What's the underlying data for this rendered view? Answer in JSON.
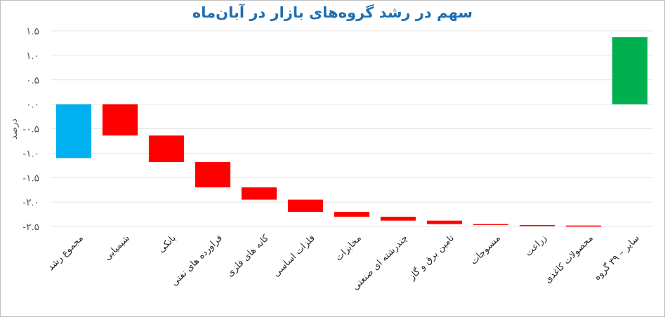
{
  "chart_data": {
    "type": "bar",
    "subtype": "waterfall",
    "title": "سهم در رشد گروه‌های بازار در آبان‌ماه",
    "ylabel": "درصد",
    "xlabel": "",
    "ylim": [
      -2.5,
      1.5
    ],
    "yticks": [
      1.5,
      1.0,
      0.5,
      0.0,
      -0.5,
      -1.0,
      -1.5,
      -2.0,
      -2.5
    ],
    "ytick_labels": [
      "۱.۵",
      "۱.۰",
      "۰.۵",
      "۰.۰",
      "-۰.۵",
      "-۱.۰",
      "-۱.۵",
      "-۲.۰",
      "-۲.۵"
    ],
    "grid": true,
    "legend": "none",
    "categories": [
      "مجموع رشد",
      "شیمیایی",
      "بانکی",
      "فراورده های نفتی",
      "کانه های فلزی",
      "فلزات اساسی",
      "مخابرات",
      "چندرشته ای صنعتی",
      "تامین برق و گاز",
      "منسوجات",
      "زراعت",
      "محصولات کاغذی",
      "سایر – ۳۹ گروه"
    ],
    "bars": [
      {
        "start": 0.0,
        "end": -1.1,
        "kind": "total"
      },
      {
        "start": 0.0,
        "end": -0.64,
        "kind": "decrease"
      },
      {
        "start": -0.64,
        "end": -1.18,
        "kind": "decrease"
      },
      {
        "start": -1.18,
        "end": -1.7,
        "kind": "decrease"
      },
      {
        "start": -1.7,
        "end": -1.95,
        "kind": "decrease"
      },
      {
        "start": -1.95,
        "end": -2.2,
        "kind": "decrease"
      },
      {
        "start": -2.2,
        "end": -2.3,
        "kind": "decrease"
      },
      {
        "start": -2.3,
        "end": -2.38,
        "kind": "decrease"
      },
      {
        "start": -2.38,
        "end": -2.45,
        "kind": "decrease"
      },
      {
        "start": -2.45,
        "end": -2.47,
        "kind": "decrease"
      },
      {
        "start": -2.47,
        "end": -2.48,
        "kind": "decrease"
      },
      {
        "start": -2.48,
        "end": -2.49,
        "kind": "decrease"
      },
      {
        "start": 0.0,
        "end": 1.37,
        "kind": "increase"
      }
    ],
    "colors": {
      "total": "#00b0f0",
      "decrease": "#ff0000",
      "increase": "#00b050",
      "grid": "#e6e6e6"
    }
  }
}
